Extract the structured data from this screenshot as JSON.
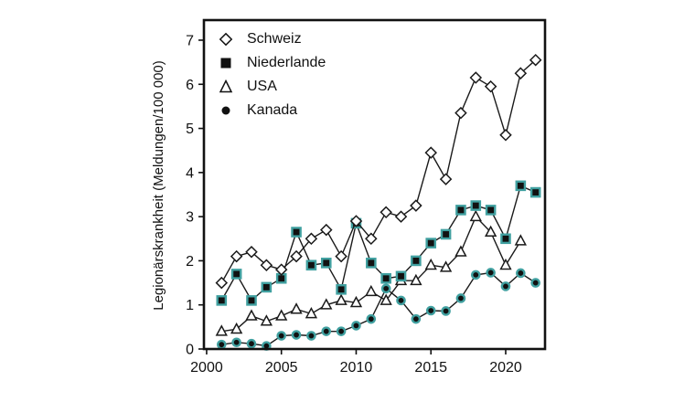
{
  "chart_data": {
    "type": "line",
    "title": "",
    "xlabel": "",
    "ylabel": "Legionärskrankheit (Meldungen/100 000)",
    "xlim": [
      1999.82,
      2022.63
    ],
    "ylim": [
      0,
      7.455
    ],
    "xticks": [
      2000,
      2005,
      2010,
      2015,
      2020
    ],
    "yticks": [
      0,
      1,
      2,
      3,
      4,
      5,
      6,
      7
    ],
    "grid": false,
    "legend_position": "top-left-inside",
    "colors": {
      "line": "#1a1a1a",
      "axis": "#111111",
      "open_marker_fill": "#ffffff",
      "filled_marker_fill": "#111111",
      "filled_marker_stroke": "#40a0a0"
    },
    "series": [
      {
        "name": "Schweiz",
        "marker": "diamond",
        "filled": false,
        "x": [
          2001,
          2002,
          2003,
          2004,
          2005,
          2006,
          2007,
          2008,
          2009,
          2010,
          2011,
          2012,
          2013,
          2014,
          2015,
          2016,
          2017,
          2018,
          2019,
          2020,
          2021,
          2022
        ],
        "y": [
          1.5,
          2.1,
          2.2,
          1.9,
          1.8,
          2.1,
          2.5,
          2.7,
          2.1,
          2.9,
          2.5,
          3.1,
          3.0,
          3.25,
          4.45,
          3.85,
          5.35,
          6.15,
          5.95,
          4.85,
          6.25,
          6.55
        ]
      },
      {
        "name": "Niederlande",
        "marker": "square",
        "filled": true,
        "x": [
          2001,
          2002,
          2003,
          2004,
          2005,
          2006,
          2007,
          2008,
          2009,
          2010,
          2011,
          2012,
          2013,
          2014,
          2015,
          2016,
          2017,
          2018,
          2019,
          2020,
          2021,
          2022
        ],
        "y": [
          1.1,
          1.7,
          1.1,
          1.4,
          1.6,
          2.65,
          1.9,
          1.95,
          1.35,
          2.85,
          1.95,
          1.6,
          1.65,
          2.0,
          2.4,
          2.6,
          3.15,
          3.25,
          3.15,
          2.5,
          3.7,
          3.55
        ]
      },
      {
        "name": "USA",
        "marker": "triangle",
        "filled": false,
        "x": [
          2001,
          2002,
          2003,
          2004,
          2005,
          2006,
          2007,
          2008,
          2009,
          2010,
          2011,
          2012,
          2013,
          2014,
          2015,
          2016,
          2017,
          2018,
          2019,
          2020,
          2021
        ],
        "y": [
          0.4,
          0.45,
          0.75,
          0.63,
          0.75,
          0.9,
          0.8,
          1.0,
          1.1,
          1.05,
          1.3,
          1.1,
          1.55,
          1.55,
          1.9,
          1.85,
          2.2,
          3.0,
          2.65,
          1.9,
          2.45
        ]
      },
      {
        "name": "Kanada",
        "marker": "circle",
        "filled": true,
        "x": [
          2001,
          2002,
          2003,
          2004,
          2005,
          2006,
          2007,
          2008,
          2009,
          2010,
          2011,
          2012,
          2013,
          2014,
          2015,
          2016,
          2017,
          2018,
          2019,
          2020,
          2021,
          2022
        ],
        "y": [
          0.1,
          0.15,
          0.12,
          0.07,
          0.3,
          0.32,
          0.3,
          0.4,
          0.4,
          0.53,
          0.68,
          1.37,
          1.1,
          0.68,
          0.87,
          0.86,
          1.15,
          1.68,
          1.73,
          1.42,
          1.72,
          1.5
        ]
      }
    ]
  }
}
